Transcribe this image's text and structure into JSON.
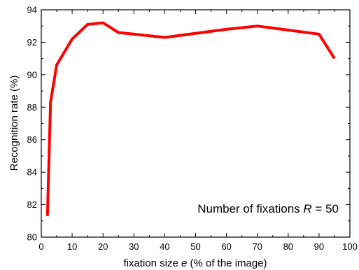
{
  "chart_data": {
    "type": "line",
    "title": "",
    "xlabel_prefix": "fixation size ",
    "xlabel_var": "e",
    "xlabel_suffix": " (% of the image)",
    "ylabel": "Recognition rate (%)",
    "xlim": [
      0,
      100
    ],
    "ylim": [
      80,
      94
    ],
    "x_ticks": [
      0,
      10,
      20,
      30,
      40,
      50,
      60,
      70,
      80,
      90,
      100
    ],
    "y_ticks": [
      80,
      82,
      84,
      86,
      88,
      90,
      92,
      94
    ],
    "grid": false,
    "annotation_prefix": "Number of fixations ",
    "annotation_var": "R",
    "annotation_suffix": " = 50",
    "series": [
      {
        "color": "#ff0000",
        "x": [
          2,
          3,
          5,
          10,
          15,
          20,
          25,
          40,
          60,
          70,
          90,
          95
        ],
        "y": [
          81.3,
          88.3,
          90.6,
          92.2,
          93.1,
          93.2,
          92.6,
          92.3,
          92.8,
          93.0,
          92.5,
          91.0
        ]
      }
    ]
  }
}
